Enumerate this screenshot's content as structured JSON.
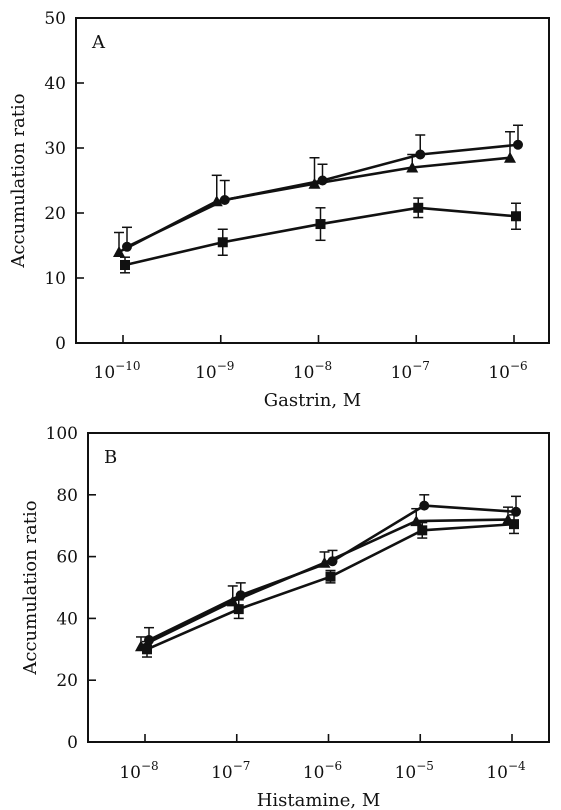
{
  "chart_data": [
    {
      "type": "line",
      "panel_label": "A",
      "xlabel": "Gastrin, M",
      "ylabel": "Accumulation ratio",
      "x_scale": "log",
      "x": [
        1e-10,
        1e-09,
        1e-08,
        1e-07,
        1e-06
      ],
      "xtick_labels": [
        {
          "base": "10",
          "exp": "−10"
        },
        {
          "base": "10",
          "exp": "−9"
        },
        {
          "base": "10",
          "exp": "−8"
        },
        {
          "base": "10",
          "exp": "−7"
        },
        {
          "base": "10",
          "exp": "−6"
        }
      ],
      "ylim": [
        0,
        50
      ],
      "yticks": [
        0,
        10,
        20,
        30,
        40,
        50
      ],
      "ytick_labels": [
        "0",
        "10",
        "20",
        "30",
        "40",
        "50"
      ],
      "series": [
        {
          "marker": "circle",
          "values": [
            14.8,
            22.0,
            25.0,
            29.0,
            30.5
          ],
          "errors": [
            3.0,
            3.0,
            2.5,
            3.0,
            3.0
          ]
        },
        {
          "marker": "triangle",
          "values": [
            14.0,
            21.8,
            24.5,
            27.0,
            28.5
          ],
          "errors": [
            3.0,
            4.0,
            4.0,
            2.0,
            4.0
          ]
        },
        {
          "marker": "square",
          "values": [
            12.0,
            15.5,
            18.3,
            20.8,
            19.5
          ],
          "errors": [
            1.2,
            2.0,
            2.5,
            1.5,
            2.0
          ]
        }
      ]
    },
    {
      "type": "line",
      "panel_label": "B",
      "xlabel": "Histamine, M",
      "ylabel": "Accumulation ratio",
      "x_scale": "log",
      "x": [
        1e-08,
        1e-07,
        1e-06,
        1e-05,
        0.0001
      ],
      "xtick_labels": [
        {
          "base": "10",
          "exp": "−8"
        },
        {
          "base": "10",
          "exp": "−7"
        },
        {
          "base": "10",
          "exp": "−6"
        },
        {
          "base": "10",
          "exp": "−5"
        },
        {
          "base": "10",
          "exp": "−4"
        }
      ],
      "ylim": [
        0,
        100
      ],
      "yticks": [
        0,
        20,
        40,
        60,
        80,
        100
      ],
      "ytick_labels": [
        "0",
        "20",
        "40",
        "60",
        "80",
        "100"
      ],
      "series": [
        {
          "marker": "circle",
          "values": [
            33.0,
            47.5,
            58.5,
            76.5,
            74.5
          ],
          "errors": [
            4.0,
            4.0,
            3.5,
            3.5,
            5.0
          ]
        },
        {
          "marker": "triangle",
          "values": [
            31.0,
            45.5,
            58.0,
            71.5,
            72.0
          ],
          "errors": [
            3.0,
            5.0,
            3.5,
            4.0,
            4.0
          ]
        },
        {
          "marker": "square",
          "values": [
            30.0,
            43.0,
            53.5,
            68.5,
            70.5
          ],
          "errors": [
            2.5,
            3.0,
            2.0,
            2.5,
            3.0
          ]
        }
      ]
    }
  ]
}
